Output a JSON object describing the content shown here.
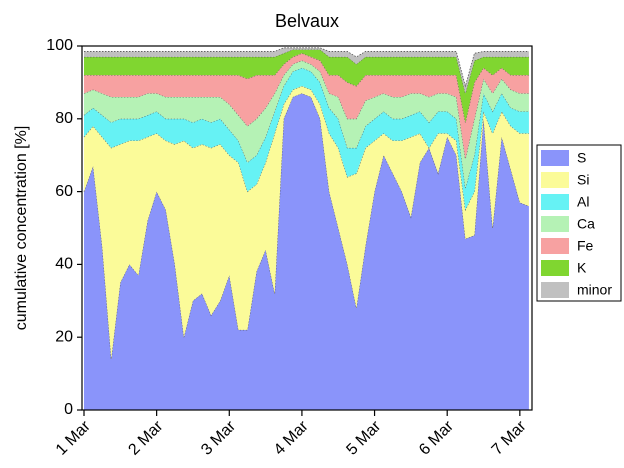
{
  "chart_data": {
    "type": "stacked-area",
    "title": "Belvaux",
    "y_label": "cumulative concentration [%]",
    "categories": [
      "1 Mar",
      null,
      null,
      null,
      null,
      null,
      null,
      null,
      "2 Mar",
      null,
      null,
      null,
      null,
      null,
      null,
      null,
      "3 Mar",
      null,
      null,
      null,
      null,
      null,
      null,
      null,
      "4 Mar",
      null,
      null,
      null,
      null,
      null,
      null,
      null,
      "5 Mar",
      null,
      null,
      null,
      null,
      null,
      null,
      null,
      "6 Mar",
      null,
      null,
      null,
      null,
      null,
      null,
      null,
      "7 Mar",
      null
    ],
    "ylim": [
      0,
      100
    ],
    "yticks": [
      0,
      20,
      40,
      60,
      80,
      100
    ],
    "legend": "right",
    "series": [
      {
        "name": "S",
        "color": "#8a94fa",
        "values": [
          60,
          67,
          45,
          14,
          35,
          40,
          37,
          52,
          60,
          55,
          40,
          20,
          30,
          32,
          26,
          30,
          37,
          22,
          22,
          38,
          44,
          32,
          80,
          86,
          87,
          86,
          80,
          60,
          50,
          40,
          28,
          45,
          60,
          70,
          65,
          60,
          53,
          68,
          72,
          65,
          75,
          70,
          47,
          48,
          80,
          50,
          75,
          66,
          57,
          56
        ]
      },
      {
        "name": "Si",
        "color": "#fbfb99",
        "values": [
          15,
          11,
          30,
          58,
          38,
          34,
          37,
          23,
          16,
          19,
          33,
          54,
          42,
          41,
          46,
          43,
          33,
          46,
          38,
          24,
          24,
          44,
          4,
          2,
          2,
          2,
          4,
          16,
          22,
          24,
          37,
          27,
          14,
          6,
          9,
          14,
          22,
          8,
          0,
          11,
          1,
          4,
          8,
          12,
          2,
          26,
          7,
          12,
          19,
          20
        ]
      },
      {
        "name": "Al",
        "color": "#66f2f4",
        "values": [
          6,
          5,
          6,
          7,
          7,
          6,
          6,
          6,
          6,
          6,
          7,
          6,
          7,
          7,
          7,
          7,
          7,
          6,
          8,
          8,
          7,
          6,
          5,
          5,
          5,
          5,
          6,
          7,
          8,
          8,
          7,
          6,
          6,
          6,
          6,
          6,
          6,
          6,
          7,
          6,
          6,
          6,
          6,
          10,
          5,
          6,
          5,
          5,
          6,
          6
        ]
      },
      {
        "name": "Ca",
        "color": "#b5f2b5",
        "values": [
          6,
          5,
          6,
          7,
          6,
          6,
          6,
          6,
          5,
          6,
          6,
          6,
          7,
          6,
          7,
          6,
          7,
          7,
          10,
          10,
          8,
          5,
          3,
          2,
          2,
          2,
          3,
          4,
          6,
          8,
          8,
          7,
          6,
          5,
          6,
          6,
          6,
          5,
          7,
          5,
          5,
          6,
          8,
          10,
          4,
          5,
          4,
          5,
          5,
          5
        ]
      },
      {
        "name": "Fe",
        "color": "#f7a1a1",
        "values": [
          5,
          4,
          5,
          6,
          6,
          6,
          6,
          5,
          5,
          6,
          6,
          6,
          6,
          6,
          6,
          6,
          8,
          11,
          13,
          12,
          9,
          5,
          3,
          2,
          2,
          2,
          3,
          5,
          6,
          10,
          9,
          7,
          6,
          5,
          6,
          6,
          5,
          5,
          6,
          5,
          5,
          6,
          10,
          10,
          3,
          5,
          3,
          4,
          5,
          5
        ]
      },
      {
        "name": "K",
        "color": "#80d630",
        "values": [
          5,
          5,
          5,
          5,
          5,
          5,
          5,
          5,
          5,
          5,
          5,
          5,
          5,
          5,
          5,
          5,
          5,
          5,
          6,
          5,
          5,
          5,
          3,
          2,
          1,
          2,
          3,
          5,
          5,
          7,
          6,
          5,
          5,
          5,
          5,
          5,
          5,
          5,
          5,
          5,
          5,
          5,
          8,
          6,
          3,
          5,
          3,
          5,
          5,
          5
        ]
      },
      {
        "name": "minor",
        "color": "#c0c0c0",
        "values": [
          1.5,
          1.5,
          1.5,
          1.5,
          1.5,
          1.5,
          1.5,
          1.5,
          1.5,
          1.5,
          1.5,
          1.5,
          1.5,
          1.5,
          1.5,
          1.5,
          1.5,
          1.5,
          1.5,
          1.5,
          1.5,
          1.5,
          1.5,
          0.5,
          0.5,
          0.5,
          0.5,
          1.5,
          1.5,
          1.5,
          2,
          1.5,
          1.5,
          1.5,
          1.5,
          1.5,
          1.5,
          1.5,
          1.5,
          1.5,
          1.5,
          1.5,
          2,
          2,
          1.5,
          1.5,
          1.5,
          1.5,
          1.5,
          1.5
        ]
      }
    ]
  }
}
